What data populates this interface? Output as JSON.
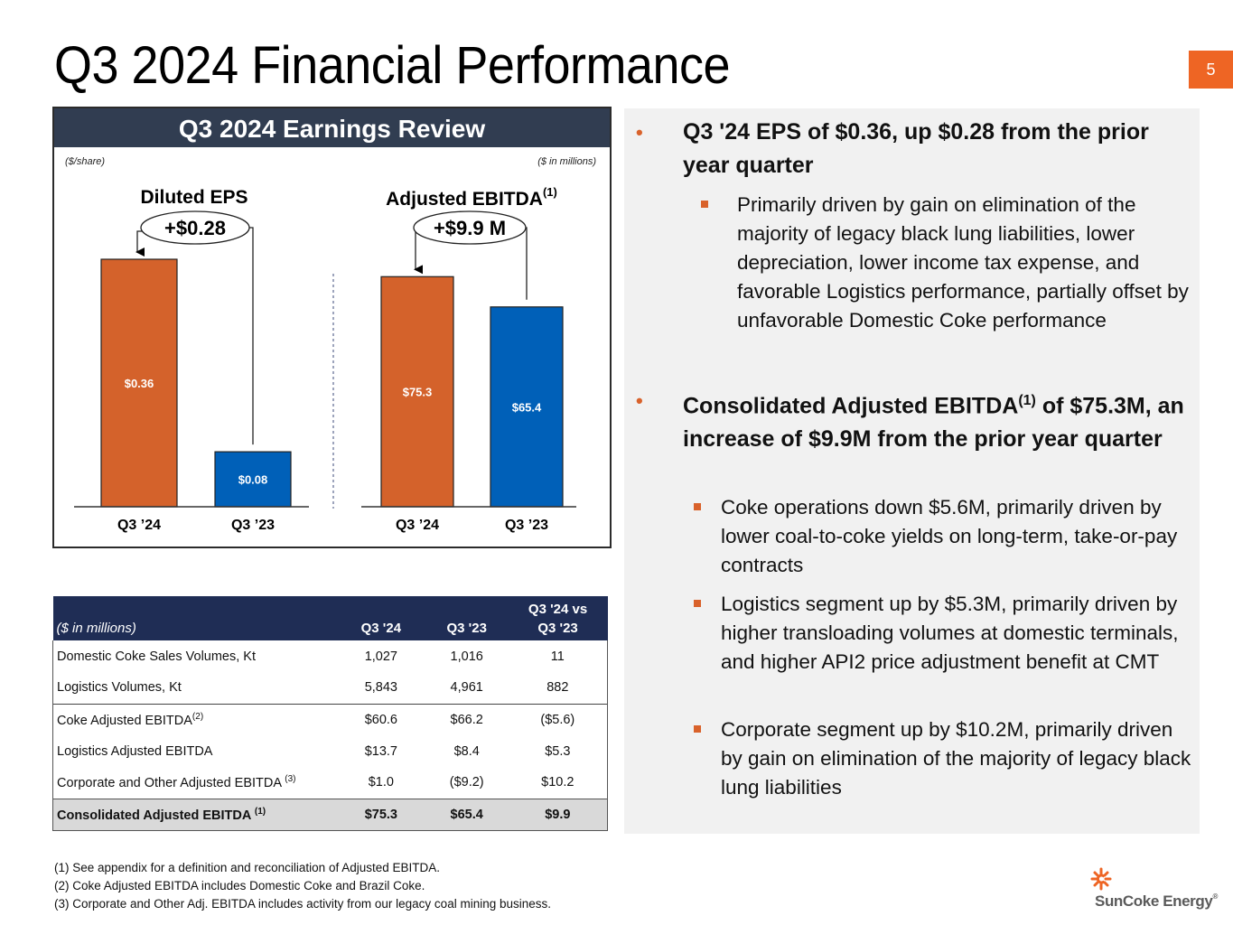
{
  "page": {
    "title": "Q3 2024 Financial Performance",
    "page_number": "5"
  },
  "review": {
    "header": "Q3 2024 Earnings Review",
    "unit_left": "($/share)",
    "unit_right": "($ in millions)"
  },
  "colors": {
    "current_bar": "#d4622b",
    "prior_bar": "#0060b8",
    "header_dark": "#313d51",
    "table_header": "#1f2d55",
    "accent": "#ee6524"
  },
  "chart_data": [
    {
      "type": "bar",
      "title": "Diluted EPS",
      "unit": "($/share)",
      "categories": [
        "Q3 ’24",
        "Q3 ’23"
      ],
      "values": [
        0.36,
        0.08
      ],
      "labels": [
        "$0.36",
        "$0.08"
      ],
      "delta_label": "+$0.28",
      "ylim": [
        0,
        0.36
      ]
    },
    {
      "type": "bar",
      "title": "Adjusted EBITDA",
      "title_sup": "(1)",
      "unit": "($ in millions)",
      "categories": [
        "Q3 ’24",
        "Q3 ’23"
      ],
      "values": [
        75.3,
        65.4
      ],
      "labels": [
        "$75.3",
        "$65.4"
      ],
      "delta_label": "+$9.9 M",
      "ylim": [
        0,
        81
      ]
    }
  ],
  "table": {
    "headers": [
      "($ in millions)",
      "Q3 '24",
      "Q3 '23",
      "Q3 '24 vs Q3 '23"
    ],
    "header_vs_line1": "Q3 '24 vs",
    "header_vs_line2": "Q3 '23",
    "rows": [
      {
        "label": "Domestic Coke Sales Volumes, Kt",
        "sup": "",
        "q3_24": "1,027",
        "q3_23": "1,016",
        "delta": "11"
      },
      {
        "label": "Logistics Volumes, Kt",
        "sup": "",
        "q3_24": "5,843",
        "q3_23": "4,961",
        "delta": "882"
      },
      {
        "label": "Coke Adjusted EBITDA",
        "sup": "(2)",
        "q3_24": "$60.6",
        "q3_23": "$66.2",
        "delta": "($5.6)"
      },
      {
        "label": "Logistics Adjusted EBITDA",
        "sup": "",
        "q3_24": "$13.7",
        "q3_23": "$8.4",
        "delta": "$5.3"
      },
      {
        "label": "Corporate and Other Adjusted EBITDA ",
        "sup": "(3)",
        "q3_24": "$1.0",
        "q3_23": "($9.2)",
        "delta": "$10.2"
      },
      {
        "label": "Consolidated Adjusted EBITDA ",
        "sup": "(1)",
        "q3_24": "$75.3",
        "q3_23": "$65.4",
        "delta": "$9.9"
      }
    ]
  },
  "footnotes": [
    "(1)  See appendix for a definition and reconciliation of Adjusted EBITDA.",
    "(2)  Coke Adjusted EBITDA includes Domestic Coke and Brazil Coke.",
    "(3)  Corporate and Other Adj. EBITDA includes activity from our legacy coal mining business."
  ],
  "bullets": [
    {
      "text": "Q3 '24 EPS of $0.36, up $0.28 from the prior year quarter",
      "sub": [
        "Primarily driven by gain on elimination of the majority of legacy black lung liabilities, lower depreciation, lower income tax expense, and favorable Logistics performance, partially offset by unfavorable Domestic Coke performance"
      ]
    },
    {
      "text_part1": "Consolidated Adjusted EBITDA",
      "text_sup": "(1)",
      "text_part2": " of $75.3M, an increase of $9.9M from the prior year quarter",
      "sub": [
        "Coke operations down $5.6M, primarily driven by lower coal-to-coke yields on long-term, take-or-pay contracts",
        "Logistics segment up by $5.3M, primarily driven by higher transloading volumes at domestic terminals, and higher API2 price adjustment benefit at CMT",
        "Corporate segment up by $10.2M, primarily driven by gain on elimination of the majority of legacy black lung liabilities"
      ]
    }
  ],
  "logo": {
    "name": "SunCoke Energy",
    "reg": "®",
    "icon": "sun-icon"
  }
}
